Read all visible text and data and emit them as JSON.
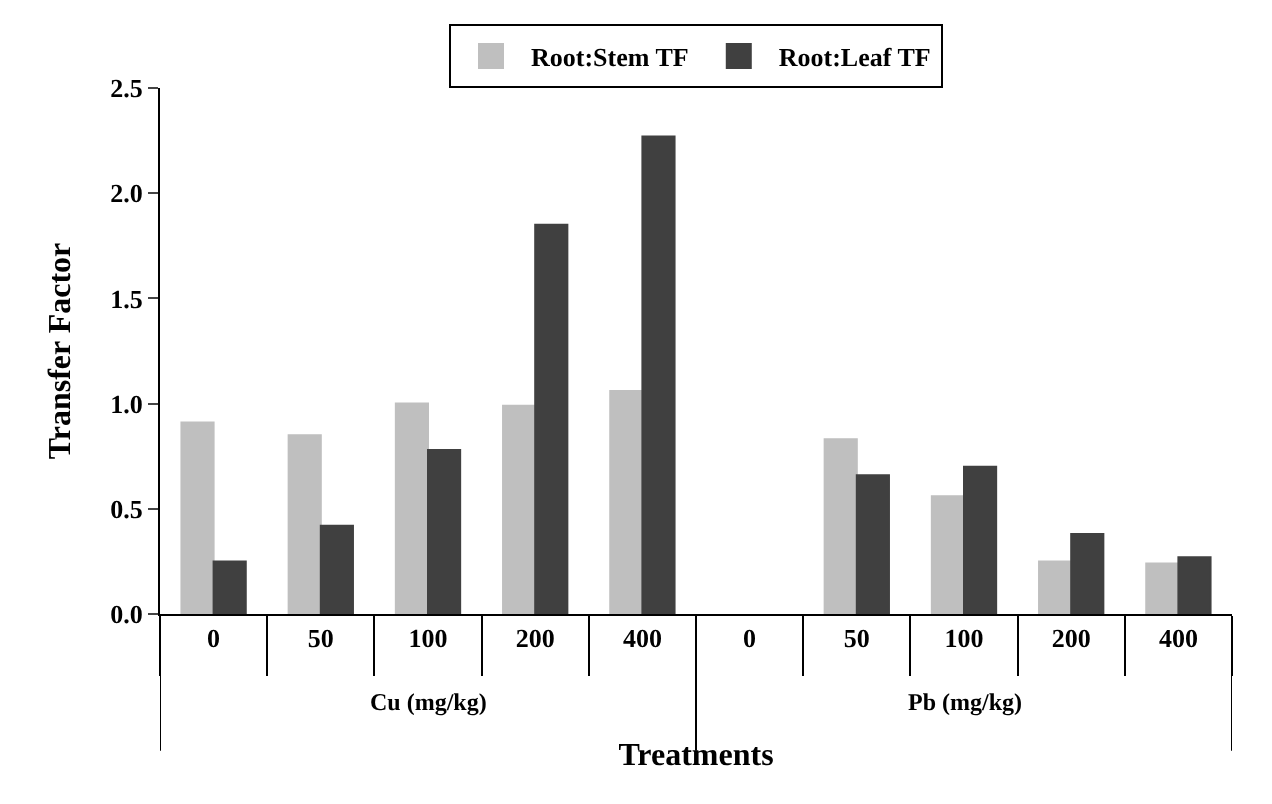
{
  "chart_data": {
    "type": "bar",
    "xlabel": "Treatments",
    "ylabel": "Transfer Factor",
    "categories": [
      "0",
      "50",
      "100",
      "200",
      "400",
      "0",
      "50",
      "100",
      "200",
      "400"
    ],
    "series": [
      {
        "name": "Root:Stem TF",
        "color": "#bfbfbf",
        "values": [
          0.91,
          0.85,
          1.0,
          0.99,
          1.06,
          null,
          0.83,
          0.56,
          0.25,
          0.24
        ]
      },
      {
        "name": "Root:Leaf TF",
        "color": "#404040",
        "values": [
          0.25,
          0.42,
          0.78,
          1.85,
          2.27,
          null,
          0.66,
          0.7,
          0.38,
          0.27
        ]
      }
    ],
    "ylim": [
      0,
      2.5
    ],
    "yticks": [
      {
        "value": 0,
        "label": "0.0"
      },
      {
        "value": 0.5,
        "label": "0.5"
      },
      {
        "value": 1,
        "label": "1.0"
      },
      {
        "value": 1.5,
        "label": "1.5"
      },
      {
        "value": 2,
        "label": "2.0"
      },
      {
        "value": 2.5,
        "label": "2.5"
      }
    ],
    "annotations": [
      "Cu (mg/kg)",
      "Pb (mg/kg)"
    ],
    "legend": "top"
  }
}
